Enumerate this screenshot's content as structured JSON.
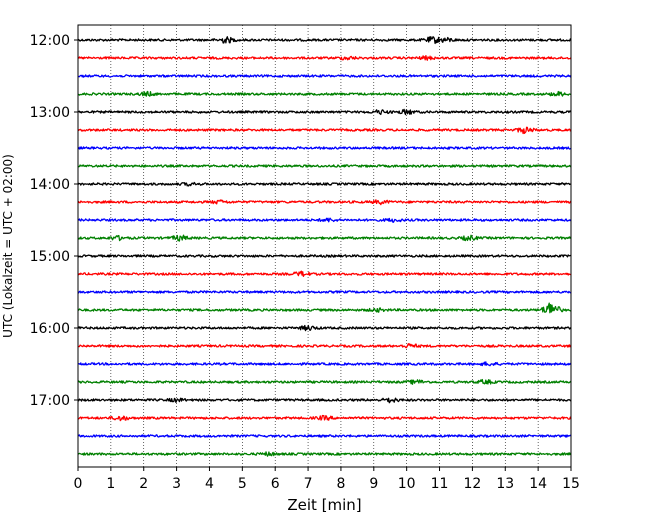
{
  "chart_data": {
    "type": "line",
    "title": "",
    "xlabel": "Zeit  [min]",
    "ylabel": "UTC (Lokalzeit = UTC + 02:00)",
    "xlim": [
      0,
      15
    ],
    "x_ticks": [
      0,
      1,
      2,
      3,
      4,
      5,
      6,
      7,
      8,
      9,
      10,
      11,
      12,
      13,
      14,
      15
    ],
    "grid": "vertical dotted",
    "trace_interval_minutes": 15,
    "hour_tick_labels": [
      "12:00",
      "13:00",
      "14:00",
      "15:00",
      "16:00",
      "17:00"
    ],
    "colors": [
      "#000000",
      "#ff0000",
      "#0000ff",
      "#008000"
    ],
    "traces": [
      {
        "start": "12:00",
        "events": [
          [
            4.5,
            0.8
          ],
          [
            10.8,
            0.8
          ],
          [
            11.2,
            0.5
          ]
        ]
      },
      {
        "start": "12:15",
        "events": [
          [
            8.2,
            0.4
          ],
          [
            10.6,
            0.4
          ]
        ]
      },
      {
        "start": "12:30",
        "events": []
      },
      {
        "start": "12:45",
        "events": [
          [
            2.1,
            0.5
          ],
          [
            14.6,
            0.5
          ]
        ]
      },
      {
        "start": "13:00",
        "events": [
          [
            9.2,
            0.5
          ],
          [
            10.0,
            0.6
          ]
        ]
      },
      {
        "start": "13:15",
        "events": [
          [
            13.6,
            0.8
          ]
        ]
      },
      {
        "start": "13:30",
        "events": []
      },
      {
        "start": "13:45",
        "events": []
      },
      {
        "start": "14:00",
        "events": [
          [
            3.4,
            0.3
          ]
        ]
      },
      {
        "start": "14:15",
        "events": [
          [
            4.3,
            0.4
          ],
          [
            9.2,
            0.5
          ]
        ]
      },
      {
        "start": "14:30",
        "events": [
          [
            7.6,
            0.4
          ],
          [
            9.6,
            0.4
          ]
        ]
      },
      {
        "start": "14:45",
        "events": [
          [
            1.2,
            0.5
          ],
          [
            3.1,
            0.7
          ],
          [
            11.9,
            0.6
          ]
        ]
      },
      {
        "start": "15:00",
        "events": []
      },
      {
        "start": "15:15",
        "events": [
          [
            6.8,
            0.6
          ]
        ]
      },
      {
        "start": "15:30",
        "events": []
      },
      {
        "start": "15:45",
        "events": [
          [
            9.1,
            0.4
          ],
          [
            14.4,
            2.2
          ]
        ]
      },
      {
        "start": "16:00",
        "events": [
          [
            7.0,
            0.6
          ]
        ]
      },
      {
        "start": "16:15",
        "events": [
          [
            10.1,
            0.5
          ]
        ]
      },
      {
        "start": "16:30",
        "events": [
          [
            12.5,
            0.4
          ]
        ]
      },
      {
        "start": "16:45",
        "events": [
          [
            10.3,
            0.5
          ],
          [
            12.4,
            0.5
          ]
        ]
      },
      {
        "start": "17:00",
        "events": [
          [
            3.0,
            0.4
          ],
          [
            9.5,
            0.6
          ]
        ]
      },
      {
        "start": "17:15",
        "events": [
          [
            1.3,
            0.6
          ],
          [
            7.5,
            0.5
          ]
        ]
      },
      {
        "start": "17:30",
        "events": []
      },
      {
        "start": "17:45",
        "events": [
          [
            5.8,
            0.4
          ]
        ]
      }
    ]
  }
}
